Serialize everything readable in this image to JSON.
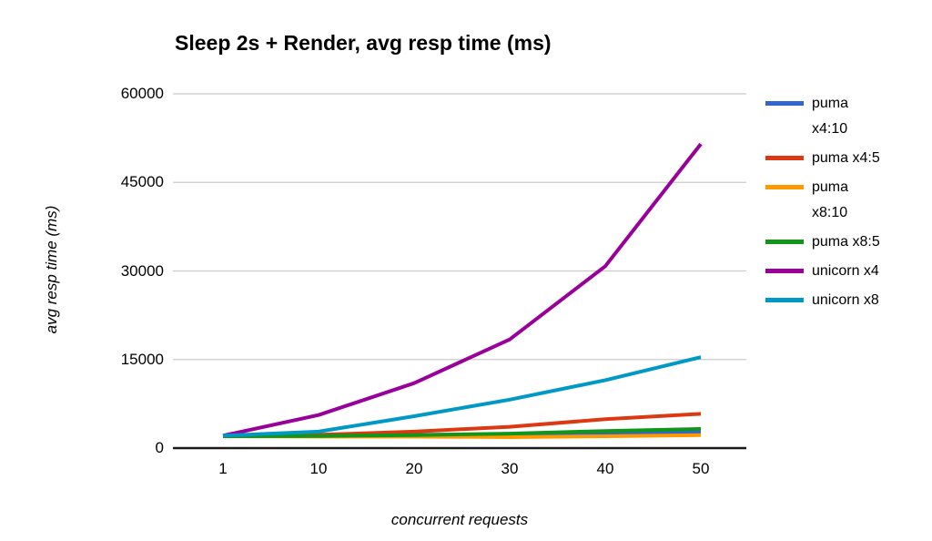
{
  "chart_data": {
    "type": "line",
    "title": "Sleep 2s + Render, avg resp time (ms)",
    "xlabel": "concurrent requests",
    "ylabel": "avg resp time (ms)",
    "x": [
      1,
      10,
      20,
      30,
      40,
      50
    ],
    "ylim": [
      0,
      60000
    ],
    "yticks": [
      0,
      15000,
      30000,
      45000,
      60000
    ],
    "grid": "horizontal-only",
    "legend_position": "right",
    "series": [
      {
        "name": "puma x4:10",
        "legend_lines": [
          "puma",
          "x4:10"
        ],
        "color": "#3366CC",
        "values": [
          2050,
          2100,
          2250,
          2350,
          2500,
          2650
        ]
      },
      {
        "name": "puma x4:5",
        "legend_lines": [
          "puma x4:5"
        ],
        "color": "#DC3912",
        "values": [
          2050,
          2250,
          2800,
          3600,
          4900,
          5800
        ]
      },
      {
        "name": "puma x8:10",
        "legend_lines": [
          "puma",
          "x8:10"
        ],
        "color": "#FF9900",
        "values": [
          2000,
          1950,
          1950,
          1850,
          2000,
          2200
        ]
      },
      {
        "name": "puma x8:5",
        "legend_lines": [
          "puma x8:5"
        ],
        "color": "#109618",
        "values": [
          2000,
          2050,
          2200,
          2450,
          2900,
          3250
        ]
      },
      {
        "name": "unicorn x4",
        "legend_lines": [
          "unicorn x4"
        ],
        "color": "#990099",
        "values": [
          2100,
          5600,
          11000,
          18400,
          30800,
          51500
        ]
      },
      {
        "name": "unicorn x8",
        "legend_lines": [
          "unicorn x8"
        ],
        "color": "#0099C6",
        "values": [
          2100,
          2800,
          5400,
          8200,
          11500,
          15400
        ]
      }
    ],
    "colors": {
      "gridline": "#cccccc",
      "axis_line": "#1a1a1a",
      "text": "#000000",
      "background": "#ffffff"
    }
  }
}
